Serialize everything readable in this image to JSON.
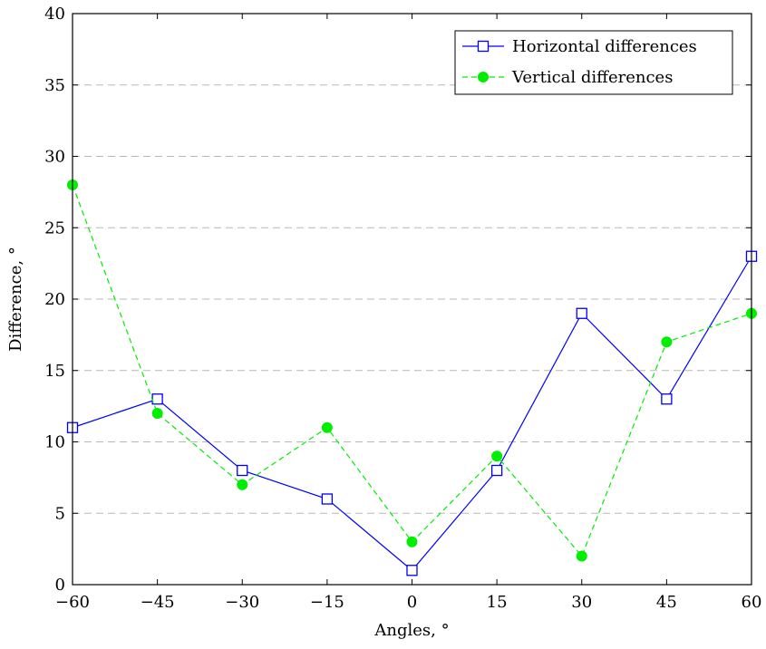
{
  "chart_data": {
    "type": "line",
    "title": "",
    "xlabel": "Angles, °",
    "ylabel": "Difference, °",
    "x": [
      -60,
      -45,
      -30,
      -15,
      0,
      15,
      30,
      45,
      60
    ],
    "xlim": [
      -60,
      60
    ],
    "ylim": [
      0,
      40
    ],
    "xticks": [
      -60,
      -45,
      -30,
      -15,
      0,
      15,
      30,
      45,
      60
    ],
    "xtick_labels": [
      "−60",
      "−45",
      "−30",
      "−15",
      "0",
      "15",
      "30",
      "45",
      "60"
    ],
    "yticks": [
      0,
      5,
      10,
      15,
      20,
      25,
      30,
      35,
      40
    ],
    "ytick_labels": [
      "0",
      "5",
      "10",
      "15",
      "20",
      "25",
      "30",
      "35",
      "40"
    ],
    "grid": "horizontal dashed",
    "legend_position": "top-right",
    "series": [
      {
        "name": "Horizontal differences",
        "values": [
          11,
          13,
          8,
          6,
          1,
          8,
          19,
          13,
          23
        ],
        "color": "#0000ff",
        "line_style": "solid",
        "marker": "open-square"
      },
      {
        "name": "Vertical differences",
        "values": [
          28,
          12,
          7,
          11,
          3,
          9,
          2,
          17,
          19
        ],
        "color": "#00ee00",
        "line_style": "dashed",
        "marker": "filled-circle"
      }
    ]
  }
}
